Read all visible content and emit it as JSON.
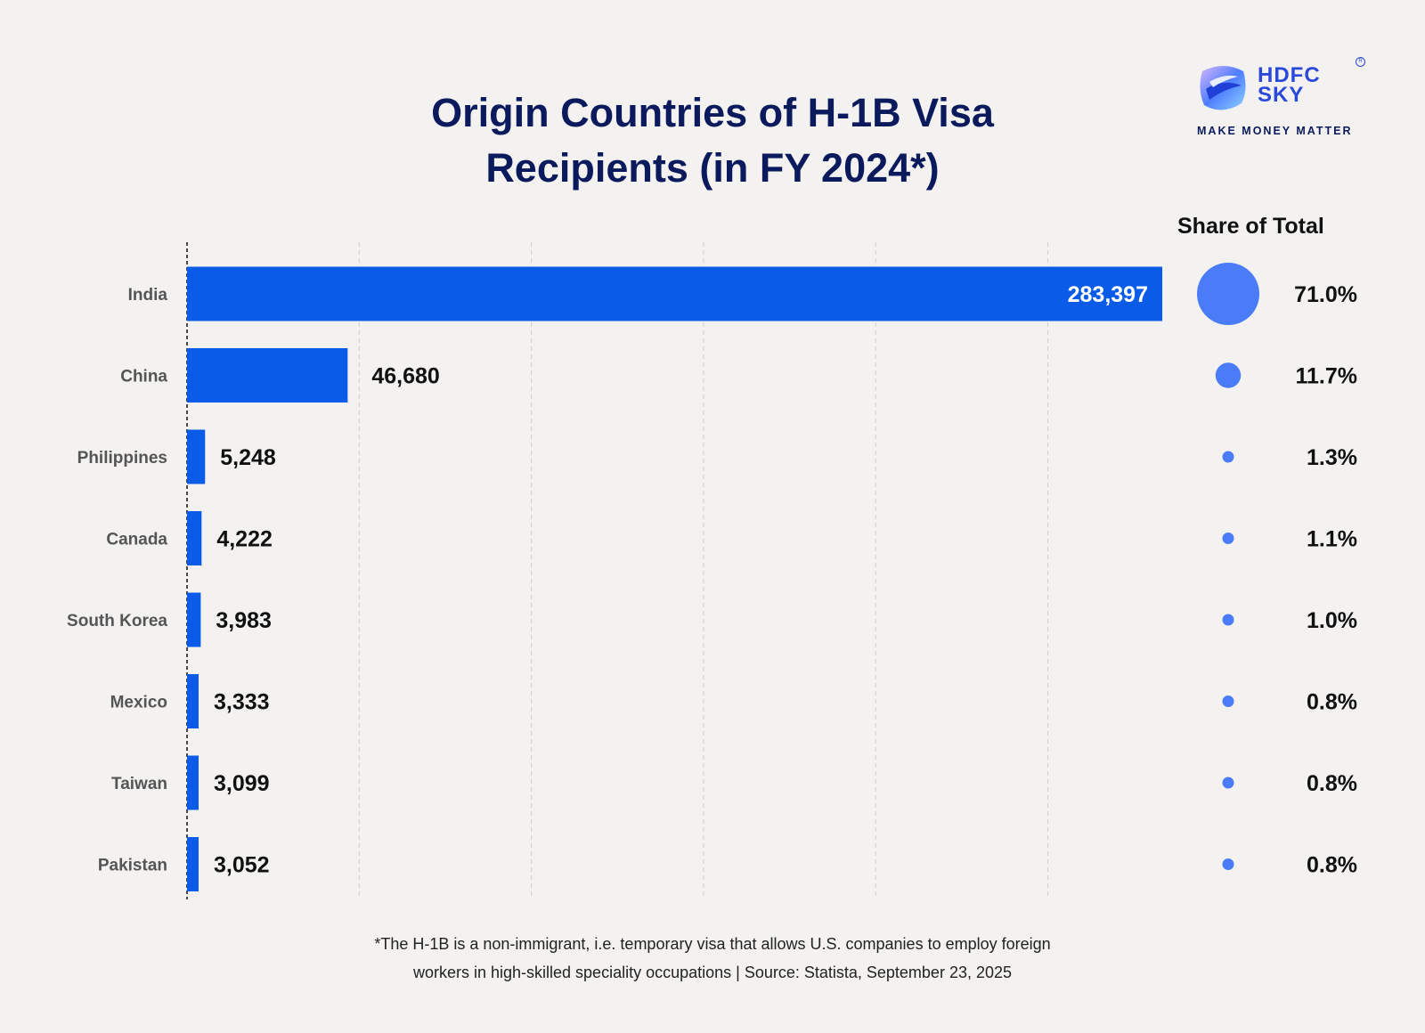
{
  "chart_data": {
    "type": "bar",
    "orientation": "horizontal",
    "title_line1": "Origin Countries of H-1B Visa",
    "title_line2": "Recipients (in FY 2024*)",
    "categories": [
      "India",
      "China",
      "Philippines",
      "Canada",
      "South Korea",
      "Mexico",
      "Taiwan",
      "Pakistan"
    ],
    "values": [
      283397,
      46680,
      5248,
      4222,
      3983,
      3333,
      3099,
      3052
    ],
    "value_labels": [
      "283,397",
      "46,680",
      "5,248",
      "4,222",
      "3,983",
      "3,333",
      "3,099",
      "3,052"
    ],
    "share_header": "Share of Total",
    "share_values": [
      71.0,
      11.7,
      1.3,
      1.1,
      1.0,
      0.8,
      0.8,
      0.8
    ],
    "share_labels": [
      "71.0%",
      "11.7%",
      "1.3%",
      "1.1%",
      "1.0%",
      "0.8%",
      "0.8%",
      "0.8%"
    ],
    "xlim": [
      0,
      283397
    ],
    "grid": true,
    "legend": "none",
    "bar_color": "#0a5ce8",
    "bubble_color": "#4a7cf8",
    "label_inside_color": "#ffffff",
    "label_outside_color": "#111111"
  },
  "brand": {
    "name_line1": "HDFC",
    "name_line2": "SKY",
    "tagline": "MAKE MONEY MATTER",
    "reg_mark": "R",
    "color": "#2b49d9"
  },
  "footnote": {
    "line1": "*The H-1B is a non-immigrant, i.e. temporary visa that allows U.S. companies to employ foreign",
    "line2": "workers in high-skilled speciality occupations  |  Source: Statista, September 23, 2025"
  }
}
